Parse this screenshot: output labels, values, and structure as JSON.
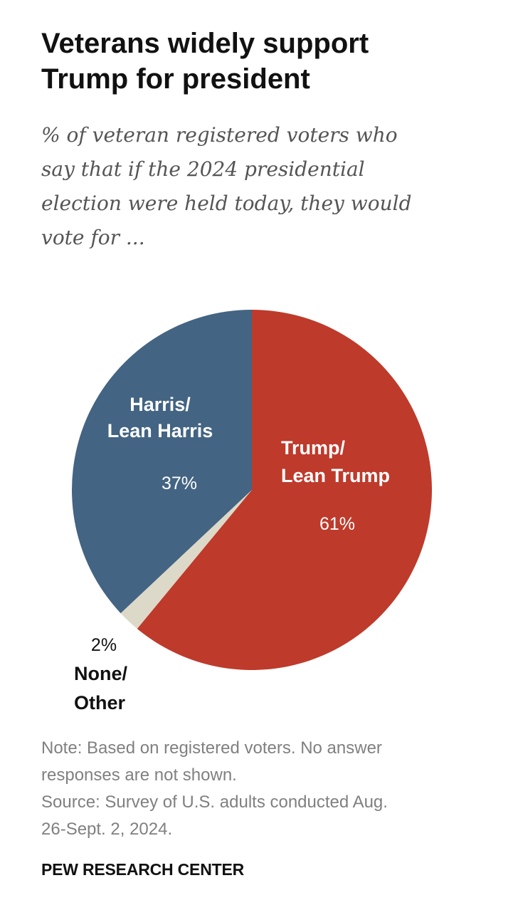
{
  "chart_data": {
    "type": "pie",
    "title": [
      "Veterans widely support",
      "Trump for president"
    ],
    "subtitle": [
      "% of veteran registered voters who",
      "say that if the 2024 presidential",
      "election were held today, they would",
      "vote for ..."
    ],
    "slices": [
      {
        "label": [
          "Trump/",
          "Lean Trump"
        ],
        "value": 61,
        "value_label": "61%",
        "color": "#be3a2b"
      },
      {
        "label": [
          "None/",
          "Other"
        ],
        "value": 2,
        "value_label": "2%",
        "color": "#ddd9c9"
      },
      {
        "label": [
          "Harris/",
          "Lean Harris"
        ],
        "value": 37,
        "value_label": "37%",
        "color": "#436482"
      }
    ],
    "start": "12 o'clock",
    "direction": "clockwise",
    "note": [
      "Note: Based on registered voters. No answer",
      "responses are not shown."
    ],
    "source": [
      "Source: Survey of U.S. adults conducted Aug.",
      "26-Sept. 2, 2024."
    ]
  },
  "branding": "PEW RESEARCH CENTER"
}
